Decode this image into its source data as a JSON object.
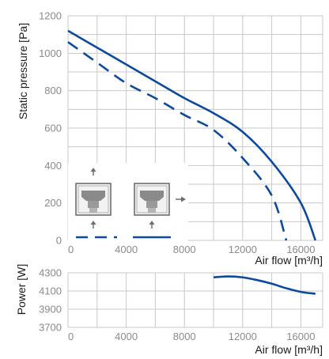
{
  "colors": {
    "curve": "#0d4a9c",
    "grid": "#c8c8c8",
    "tick_text": "#8a8a8a",
    "axis_text": "#1a1a1a",
    "schematic": "#6e6e6e"
  },
  "chart_data": [
    {
      "type": "line",
      "ylabel": "Static pressure [Pa]",
      "xlabel": "Air flow [m³/h]",
      "xlim": [
        0,
        17500
      ],
      "ylim": [
        0,
        1200
      ],
      "x_ticks": [
        0,
        4000,
        8000,
        12000,
        16000
      ],
      "y_ticks": [
        0,
        200,
        400,
        600,
        800,
        1000,
        1200
      ],
      "x_tick_labels": [
        "0",
        "4000",
        "8000",
        "12000",
        "16000"
      ],
      "y_tick_labels": [
        "0",
        "200",
        "400",
        "600",
        "800",
        "1000",
        "1200"
      ],
      "grid": true,
      "series": [
        {
          "style": "solid",
          "points": [
            [
              0,
              1120
            ],
            [
              2000,
              1030
            ],
            [
              4000,
              940
            ],
            [
              6000,
              850
            ],
            [
              8000,
              760
            ],
            [
              10000,
              680
            ],
            [
              12000,
              580
            ],
            [
              14000,
              420
            ],
            [
              16000,
              200
            ],
            [
              17000,
              0
            ]
          ]
        },
        {
          "style": "dashed",
          "points": [
            [
              0,
              1060
            ],
            [
              2000,
              950
            ],
            [
              4000,
              840
            ],
            [
              6000,
              760
            ],
            [
              8000,
              670
            ],
            [
              10000,
              590
            ],
            [
              12000,
              440
            ],
            [
              14000,
              240
            ],
            [
              15000,
              0
            ]
          ]
        }
      ]
    },
    {
      "type": "line",
      "ylabel": "Power [W]",
      "xlabel": "Air flow [m³/h]",
      "xlim": [
        0,
        17500
      ],
      "ylim": [
        3700,
        4300
      ],
      "x_ticks": [
        0,
        4000,
        8000,
        12000,
        16000
      ],
      "y_ticks": [
        3700,
        3900,
        4100,
        4300
      ],
      "x_tick_labels": [
        "0",
        "4000",
        "8000",
        "12000",
        "16000"
      ],
      "y_tick_labels": [
        "3700",
        "3900",
        "4100",
        "4300"
      ],
      "grid": true,
      "series": [
        {
          "style": "solid",
          "points": [
            [
              10000,
              4250
            ],
            [
              11000,
              4260
            ],
            [
              12000,
              4250
            ],
            [
              13000,
              4220
            ],
            [
              14000,
              4180
            ],
            [
              15000,
              4130
            ],
            [
              16000,
              4090
            ],
            [
              17000,
              4070
            ]
          ]
        }
      ]
    }
  ],
  "legend": [
    {
      "style": "dashed",
      "airflow_direction": "up"
    },
    {
      "style": "solid",
      "airflow_direction": "right"
    }
  ]
}
